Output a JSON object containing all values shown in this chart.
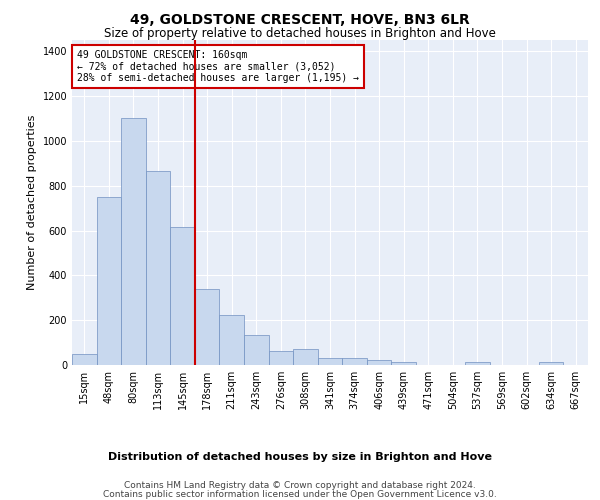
{
  "title": "49, GOLDSTONE CRESCENT, HOVE, BN3 6LR",
  "subtitle": "Size of property relative to detached houses in Brighton and Hove",
  "xlabel": "Distribution of detached houses by size in Brighton and Hove",
  "ylabel": "Number of detached properties",
  "footer1": "Contains HM Land Registry data © Crown copyright and database right 2024.",
  "footer2": "Contains public sector information licensed under the Open Government Licence v3.0.",
  "categories": [
    "15sqm",
    "48sqm",
    "80sqm",
    "113sqm",
    "145sqm",
    "178sqm",
    "211sqm",
    "243sqm",
    "276sqm",
    "308sqm",
    "341sqm",
    "374sqm",
    "406sqm",
    "439sqm",
    "471sqm",
    "504sqm",
    "537sqm",
    "569sqm",
    "602sqm",
    "634sqm",
    "667sqm"
  ],
  "values": [
    50,
    750,
    1100,
    865,
    615,
    340,
    225,
    135,
    62,
    70,
    32,
    32,
    22,
    14,
    0,
    0,
    12,
    0,
    0,
    12,
    0
  ],
  "bar_color": "#c8d8ee",
  "bar_edge_color": "#7090c0",
  "vline_x": 4.5,
  "vline_color": "#cc0000",
  "annotation_text": "49 GOLDSTONE CRESCENT: 160sqm\n← 72% of detached houses are smaller (3,052)\n28% of semi-detached houses are larger (1,195) →",
  "annotation_box_color": "#ffffff",
  "annotation_box_edge": "#cc0000",
  "ylim": [
    0,
    1450
  ],
  "yticks": [
    0,
    200,
    400,
    600,
    800,
    1000,
    1200,
    1400
  ],
  "background_color": "#ffffff",
  "plot_background": "#e8eef8",
  "grid_color": "#ffffff",
  "title_fontsize": 10,
  "subtitle_fontsize": 8.5,
  "ylabel_fontsize": 8,
  "xlabel_fontsize": 8,
  "tick_fontsize": 7,
  "footer_fontsize": 6.5,
  "annotation_fontsize": 7
}
